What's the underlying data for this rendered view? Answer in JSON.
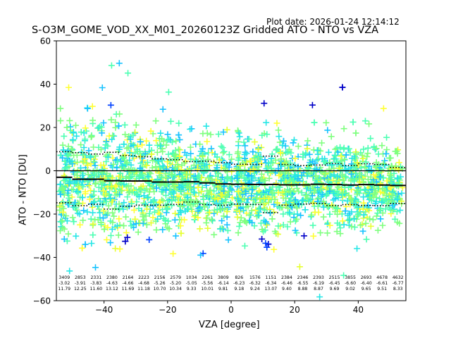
{
  "plot_date": "Plot date: 2026-01-24 12:14:12",
  "chart_data": {
    "type": "scatter",
    "title": "S-O3M_GOME_VOD_XX_M01_20260123Z Gridded ATO - NTO vs VZA",
    "xlabel": "VZA [degree]",
    "ylabel": "ATO - NTO [DU]",
    "xlim": [
      -55,
      55
    ],
    "ylim": [
      -60,
      60
    ],
    "xticks": [
      -40,
      -20,
      0,
      20,
      40
    ],
    "yticks": [
      -60,
      -40,
      -20,
      0,
      20,
      40,
      60
    ],
    "zero_line": 0,
    "marker": "+",
    "colors": [
      "#7fff7f",
      "#4dffb3",
      "#26e6e6",
      "#19c3ff",
      "#ffff33",
      "#e6ff33",
      "#0040ff",
      "#0000c8"
    ],
    "bins": [
      {
        "vza": -52.5,
        "count": "3409",
        "mean": "-3.02",
        "std": "11.79",
        "median": -3.0
      },
      {
        "vza": -47.5,
        "count": "2853",
        "mean": "-3.91",
        "std": "12.25",
        "median": -3.9
      },
      {
        "vza": -42.5,
        "count": "2331",
        "mean": "-3.83",
        "std": "11.60",
        "median": -3.9
      },
      {
        "vza": -37.5,
        "count": "2380",
        "mean": "-4.63",
        "std": "13.12",
        "median": -4.6
      },
      {
        "vza": -32.5,
        "count": "2164",
        "mean": "-4.66",
        "std": "11.69",
        "median": -4.7
      },
      {
        "vza": -27.5,
        "count": "2223",
        "mean": "-4.68",
        "std": "11.18",
        "median": -4.7
      },
      {
        "vza": -22.5,
        "count": "2156",
        "mean": "-5.26",
        "std": "10.70",
        "median": -5.2
      },
      {
        "vza": -17.5,
        "count": "2579",
        "mean": "-5.20",
        "std": "10.34",
        "median": -5.2
      },
      {
        "vza": -12.5,
        "count": "1034",
        "mean": "-5.05",
        "std": "9.33",
        "median": -5.1
      },
      {
        "vza": -7.5,
        "count": "2261",
        "mean": "-5.56",
        "std": "10.01",
        "median": -5.6
      },
      {
        "vza": -2.5,
        "count": "3809",
        "mean": "-6.14",
        "std": "9.81",
        "median": -6.1
      },
      {
        "vza": 2.5,
        "count": "826",
        "mean": "-6.23",
        "std": "9.18",
        "median": -6.2
      },
      {
        "vza": 7.5,
        "count": "1576",
        "mean": "-6.32",
        "std": "9.24",
        "median": -6.3
      },
      {
        "vza": 12.5,
        "count": "1151",
        "mean": "-6.34",
        "std": "13.07",
        "median": -6.3
      },
      {
        "vza": 17.5,
        "count": "2384",
        "mean": "-6.46",
        "std": "9.40",
        "median": -6.5
      },
      {
        "vza": 22.5,
        "count": "2346",
        "mean": "-6.55",
        "std": "8.88",
        "median": -6.5
      },
      {
        "vza": 27.5,
        "count": "2393",
        "mean": "-6.19",
        "std": "8.87",
        "median": -6.2
      },
      {
        "vza": 32.5,
        "count": "2515",
        "mean": "-6.45",
        "std": "9.69",
        "median": -6.4
      },
      {
        "vza": 37.5,
        "count": "3855",
        "mean": "-6.60",
        "std": "9.02",
        "median": -6.6
      },
      {
        "vza": 42.5,
        "count": "2693",
        "mean": "-6.40",
        "std": "9.65",
        "median": -6.4
      },
      {
        "vza": 47.5,
        "count": "4678",
        "mean": "-6.61",
        "std": "9.51",
        "median": -6.6
      },
      {
        "vza": 52.5,
        "count": "4632",
        "mean": "-6.77",
        "std": "8.33",
        "median": -6.8
      }
    ]
  }
}
